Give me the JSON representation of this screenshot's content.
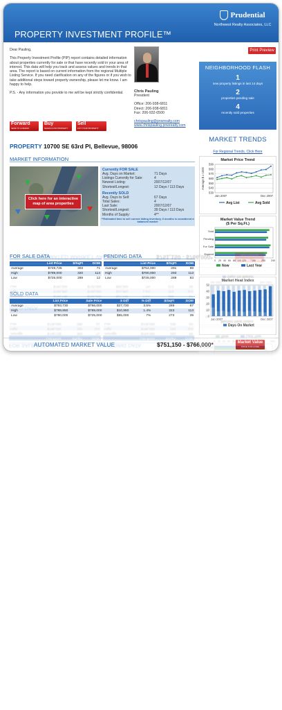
{
  "header": {
    "title": "PROPERTY INVESTMENT PROFILE™",
    "brand_name": "Prudential",
    "brand_sub": "Northwest Realty Associates, LLC",
    "print_label": "Print Preview"
  },
  "letter": {
    "greeting": "Dear Pauling,",
    "body": "This Property Investment Profile (PIP) report contains detailed information about properties currently for sale or that have recently sold in your area of interest. This data will help you track and assess values and trends in that area. The report is based on current information from the regional Multiple Listing Service. If you need clarification on any of the figures or if you wish to take additional steps toward property ownership, please let me know. I am happy to help.",
    "ps": "P.S. - Any information you provide to me will be kept strictly confidential."
  },
  "buttons": [
    {
      "label": "Forward",
      "sub": "SEND TO A FRIEND"
    },
    {
      "label": "Buy",
      "sub": "SEARCH FOR PROPERTY"
    },
    {
      "label": "Sell",
      "sub": "LIST YOUR PROPERTY"
    }
  ],
  "agent": {
    "name": "Chris Pauling",
    "title": "President",
    "office": "Office: 206-938-6811",
    "direct": "Direct: 206-938-6811",
    "fax": "Fax: 206-932-0500",
    "email": "chrispauling@pnwrealty.com",
    "web": "www.chrispauling.pnwrealty.com"
  },
  "flash": {
    "title": "NEIGHBORHOOD FLASH",
    "items": [
      {
        "num": "1",
        "label": "new property listings in last 14 days"
      },
      {
        "num": "2",
        "label": "properties pending sale"
      },
      {
        "num": "4",
        "label": "recently sold properties"
      }
    ]
  },
  "property": {
    "label": "PROPERTY",
    "address": "10700 SE 63rd Pl, Bellevue, 98006"
  },
  "trends": {
    "title": "MARKET TRENDS",
    "link": "For Regional Trends, Click Here"
  },
  "market_info": {
    "title": "MARKET INFORMATION",
    "map_link": "Click here for an interactive map of area properties",
    "for_sale": {
      "heading": "Currently FOR SALE",
      "rows": [
        [
          "Avg. Days on Market:",
          "71 Days"
        ],
        [
          "Listings Currently for Sale:",
          "4"
        ],
        [
          "Newest Listing:",
          "2007/12/07"
        ],
        [
          "Shortest/Longest:",
          "12 Days / 113 Days"
        ]
      ]
    },
    "sold": {
      "heading": "Recently SOLD",
      "rows": [
        [
          "Avg. Days to Sell:",
          "67 Days"
        ],
        [
          "Total Sales:",
          "4"
        ],
        [
          "Last Sale:",
          "2007/12/07"
        ],
        [
          "Shortest/Longest:",
          "39 Days / 113 Days"
        ],
        [
          "Months of Supply:",
          "4**"
        ]
      ]
    },
    "note": "**Estimated time to sell current listing inventory. 6 months is considered a balanced market"
  },
  "for_sale_data": {
    "title": "FOR SALE DATA",
    "cols": [
      "",
      "List Price",
      "$/SqFt",
      "DOM"
    ],
    "rows": [
      [
        "Average",
        "$749,725",
        "303",
        "71"
      ],
      [
        "High",
        "$789,000",
        "320",
        "113"
      ],
      [
        "Low",
        "$725,000",
        "289",
        "12"
      ]
    ]
  },
  "pending_data": {
    "title": "PENDING DATA",
    "cols": [
      "",
      "List Price",
      "$/SqFt",
      "DOM"
    ],
    "rows": [
      [
        "Average",
        "$754,000",
        "291",
        "98"
      ],
      [
        "High",
        "$780,000",
        "293",
        "113"
      ],
      [
        "Low",
        "$728,000",
        "289",
        "83"
      ]
    ]
  },
  "sold_data": {
    "title": "SOLD DATA",
    "cols": [
      "",
      "List Price",
      "Sale Price",
      "$ Diff",
      "% Diff",
      "$/SqFt",
      "DOM"
    ],
    "rows": [
      [
        "Average",
        "$793,730",
        "$766,000",
        "$27,730",
        "3.5%",
        "289",
        "67"
      ],
      [
        "High",
        "$799,950",
        "$789,000",
        "$10,950",
        "1.4%",
        "323",
        "113"
      ],
      [
        "Low",
        "$780,000",
        "$725,000",
        "$55,000",
        "7%",
        "273",
        "39"
      ]
    ]
  },
  "amv": {
    "label": "AUTOMATED MARKET VALUE",
    "value": "$751,150 - $766,000*",
    "btn": "Market Value",
    "btn_sub": "PRICE THIS HOME"
  },
  "chart_data": [
    {
      "type": "line",
      "title": "Market Price Trend",
      "ylabel": "Average $ x 1000",
      "ylim": [
        530,
        590
      ],
      "yticks": [
        "590",
        "580",
        "570",
        "560",
        "550",
        "540",
        "530"
      ],
      "x_start": "Jan 2007",
      "x_end": "Dec 2007",
      "series": [
        {
          "name": "Avg List",
          "color": "#2a6ab8",
          "values": [
            562,
            566,
            568,
            567,
            572,
            574,
            573,
            571,
            574,
            578,
            579,
            586
          ]
        },
        {
          "name": "Avg Sold",
          "color": "#3aa64a",
          "values": [
            558,
            560,
            562,
            559,
            564,
            566,
            562,
            564,
            566,
            563,
            567,
            568
          ]
        }
      ]
    },
    {
      "type": "bar",
      "title": "Market Value Trend",
      "subtitle": "($ Per Sq.Ft.)",
      "categories": [
        "Sold",
        "Pending",
        "For Sale",
        "Expired"
      ],
      "xlim": [
        0,
        240
      ],
      "xticks": [
        "0",
        "20",
        "40",
        "60",
        "80",
        "100",
        "120",
        "160",
        "200",
        "240"
      ],
      "series": [
        {
          "name": "Now",
          "color": "#3aa64a",
          "values": [
            225,
            220,
            230,
            215
          ]
        },
        {
          "name": "Last Year",
          "color": "#2a6ab8",
          "values": [
            215,
            212,
            225,
            210
          ]
        }
      ]
    },
    {
      "type": "bar",
      "title": "Market Heat Index",
      "ylim": [
        0,
        50
      ],
      "yticks": [
        "50",
        "40",
        "30",
        "20",
        "10",
        "0"
      ],
      "x_start": "Jan 2007",
      "x_end": "Dec 2007",
      "series": [
        {
          "name": "Days On Market",
          "color": "#2a6ab8",
          "values": [
            35,
            41,
            40,
            42,
            39,
            41,
            42,
            40,
            41,
            42,
            43,
            48
          ]
        }
      ]
    }
  ]
}
